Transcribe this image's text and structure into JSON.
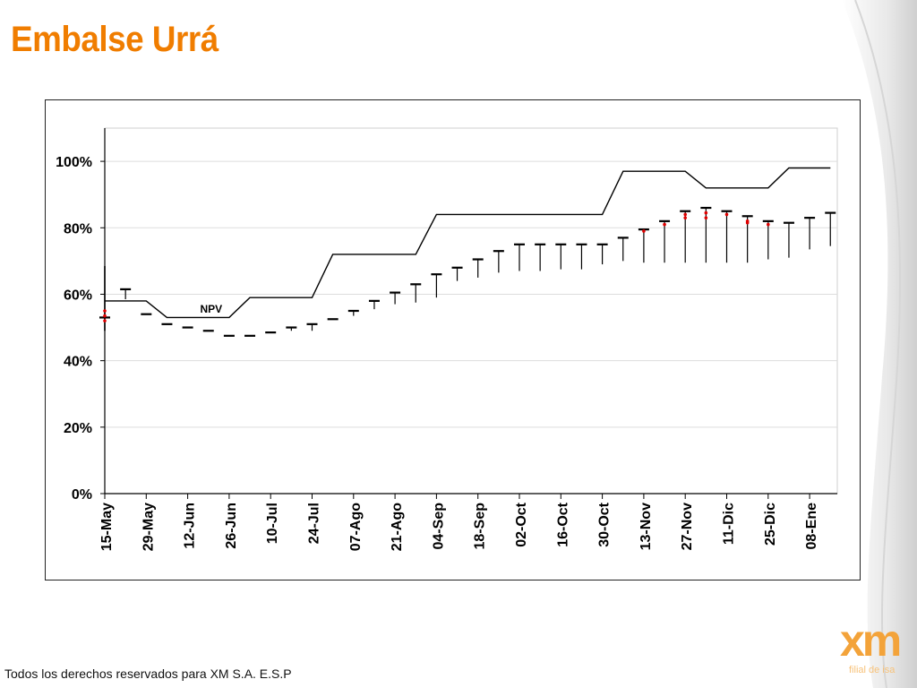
{
  "title": "Embalse Urrá",
  "footer": "Todos los derechos reservados para XM S.A. E.S.P",
  "logo": {
    "text": "xm",
    "tagline": "filial de isa"
  },
  "colors": {
    "title": "#f07d00",
    "logo": "#f3a33a",
    "points": "#e00000",
    "line": "#000000",
    "grid": "#dddddd"
  },
  "chart_data": {
    "type": "line",
    "title": "",
    "xlabel": "",
    "ylabel": "",
    "ylim": [
      0,
      110
    ],
    "grid": true,
    "yticks": [
      "0%",
      "20%",
      "40%",
      "60%",
      "80%",
      "100%"
    ],
    "ytick_values": [
      0,
      20,
      40,
      60,
      80,
      100
    ],
    "categories": [
      "15-May",
      "29-May",
      "12-Jun",
      "26-Jun",
      "10-Jul",
      "24-Jul",
      "07-Ago",
      "21-Ago",
      "04-Sep",
      "18-Sep",
      "02-Oct",
      "16-Oct",
      "30-Oct",
      "13-Nov",
      "27-Nov",
      "11-Dic",
      "25-Dic",
      "08-Ene"
    ],
    "annotation": "NPV",
    "upper_curve": {
      "x": [
        0,
        1,
        1.5,
        3,
        3.5,
        5,
        5.5,
        7.5,
        8,
        12,
        12.5,
        14,
        14.5,
        16,
        16.5,
        17.5
      ],
      "values": [
        58,
        58,
        53,
        53,
        59,
        59,
        72,
        72,
        84,
        84,
        97,
        97,
        92,
        92,
        98,
        98
      ]
    },
    "forecast_ranges": {
      "x": [
        0,
        0.5,
        1,
        1.5,
        2,
        2.5,
        3,
        3.5,
        4,
        4.5,
        5,
        5.5,
        6,
        6.5,
        7,
        7.5,
        8,
        8.5,
        9,
        9.5,
        10,
        10.5,
        11,
        11.5,
        12,
        12.5,
        13,
        13.5,
        14,
        14.5,
        15,
        15.5,
        16,
        16.5,
        17,
        17.5
      ],
      "top": [
        53,
        61.5,
        54,
        51,
        50,
        49,
        47.5,
        47.5,
        48.5,
        50,
        51,
        52.5,
        55,
        58,
        60.5,
        63,
        66,
        68,
        70.5,
        73,
        75,
        75,
        75,
        75,
        75,
        77,
        79.5,
        82,
        85,
        86,
        85,
        83.5,
        82,
        81.5,
        83,
        84.5
      ],
      "bottom": [
        53,
        58.5,
        54,
        51,
        50,
        49,
        47.5,
        47.5,
        48.5,
        49,
        49,
        52.5,
        53.5,
        55.5,
        57,
        57.5,
        59,
        64,
        65,
        66.5,
        67,
        67,
        67.5,
        67.5,
        69,
        70,
        69.5,
        69.5,
        69.5,
        69.5,
        69.5,
        69.5,
        70.5,
        71,
        73.5,
        74.5
      ]
    },
    "stem_15_may": {
      "x": 0,
      "top": 68.5,
      "bottom": 49
    },
    "red_points": [
      {
        "x": 0,
        "values": [
          55,
          53.5,
          52
        ]
      },
      {
        "x": 13,
        "values": [
          79
        ]
      },
      {
        "x": 13.5,
        "values": [
          81
        ]
      },
      {
        "x": 14,
        "values": [
          84,
          83
        ]
      },
      {
        "x": 14.5,
        "values": [
          84.5,
          83
        ]
      },
      {
        "x": 15,
        "values": [
          84
        ]
      },
      {
        "x": 15.5,
        "values": [
          82,
          81.5
        ]
      },
      {
        "x": 16,
        "values": [
          81
        ]
      }
    ]
  }
}
